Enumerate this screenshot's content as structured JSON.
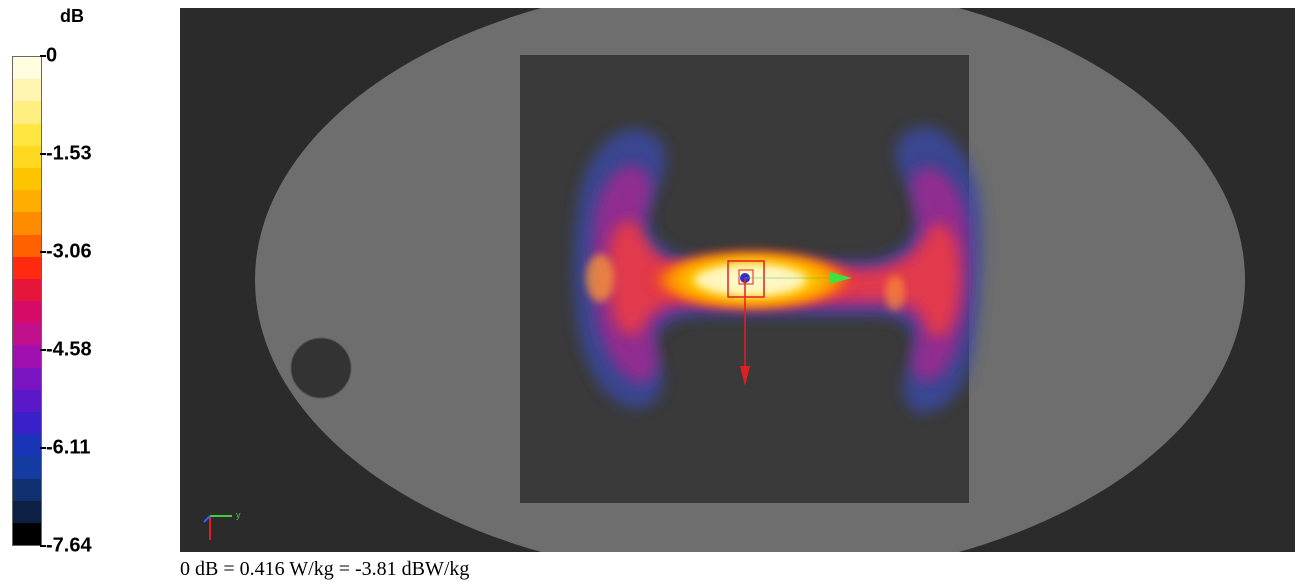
{
  "legend": {
    "unit": "dB",
    "ticks": [
      {
        "label": "0",
        "value": 0
      },
      {
        "label": "-1.53",
        "value": -1.53
      },
      {
        "label": "-3.06",
        "value": -3.06
      },
      {
        "label": "-4.58",
        "value": -4.58
      },
      {
        "label": "-6.11",
        "value": -6.11
      },
      {
        "label": "-7.64",
        "value": -7.64
      }
    ],
    "range": [
      -7.64,
      0
    ],
    "colors": [
      "#fffce0",
      "#fff5b0",
      "#ffef80",
      "#ffe640",
      "#ffd820",
      "#ffc400",
      "#ffae00",
      "#ff8c00",
      "#ff6000",
      "#ff2a10",
      "#e6163a",
      "#d40c68",
      "#c0108c",
      "#a010b0",
      "#7a14c0",
      "#5a18c8",
      "#3a20c8",
      "#1a34b8",
      "#143ca0",
      "#103070",
      "#0c2044",
      "#000000"
    ]
  },
  "viewport": {
    "colors": {
      "background": "#2b2b2b",
      "phantom": "#6e6e6e",
      "scan_area": "#3a3a3a",
      "hole": "#333333"
    },
    "axis": {
      "y_label": "y"
    }
  },
  "footer": {
    "caption": "0 dB = 0.416 W/kg = -3.81 dBW/kg"
  }
}
